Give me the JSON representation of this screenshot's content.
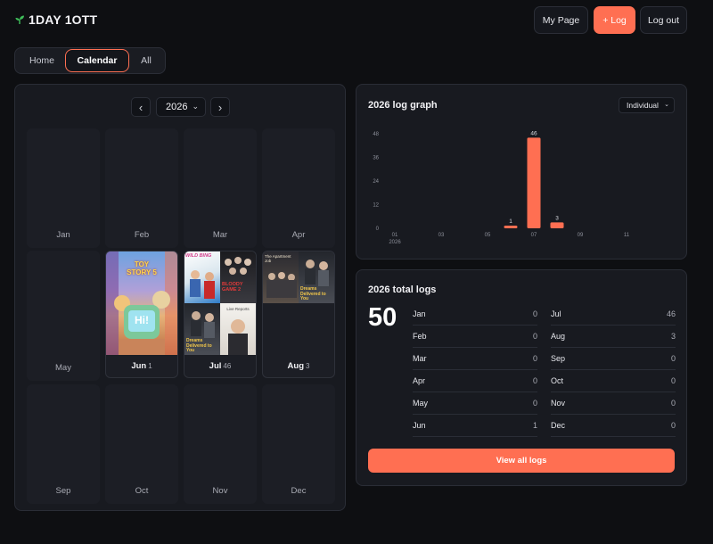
{
  "header": {
    "logo": "1DAY 1OTT",
    "my_page": "My Page",
    "log_button": "+ Log",
    "logout": "Log out"
  },
  "tabs": [
    "Home",
    "Calendar",
    "All"
  ],
  "calendar": {
    "year": "2026",
    "prev_label": "‹",
    "next_label": "›",
    "months": [
      {
        "label": "Jan",
        "count": ""
      },
      {
        "label": "Feb",
        "count": ""
      },
      {
        "label": "Mar",
        "count": ""
      },
      {
        "label": "Apr",
        "count": ""
      },
      {
        "label": "May",
        "count": ""
      },
      {
        "label": "Jun",
        "count": "1"
      },
      {
        "label": "Jul",
        "count": "46"
      },
      {
        "label": "Aug",
        "count": "3"
      },
      {
        "label": "Sep",
        "count": ""
      },
      {
        "label": "Oct",
        "count": ""
      },
      {
        "label": "Nov",
        "count": ""
      },
      {
        "label": "Dec",
        "count": ""
      }
    ],
    "poster_texts": {
      "jun_title": "TOY STORY 5",
      "jun_sign": "Hi!",
      "jul_1": "WILD BING",
      "jul_2": "BLOODY GAME 2",
      "jul_3": "Dreams Delivered to You",
      "jul_4": "Live Reports",
      "aug_1": "The Apartment Job",
      "aug_2": "Dreams Delivered to You"
    }
  },
  "graph": {
    "title": "2026 log graph",
    "mode": "Individual",
    "year_sub": "2026"
  },
  "chart_data": {
    "type": "bar",
    "categories": [
      "01",
      "02",
      "03",
      "04",
      "05",
      "06",
      "07",
      "08",
      "09",
      "10",
      "11",
      "12"
    ],
    "x_tick_labels": [
      "01",
      "03",
      "05",
      "07",
      "09",
      "11"
    ],
    "values": [
      0,
      0,
      0,
      0,
      0,
      1,
      46,
      3,
      0,
      0,
      0,
      0
    ],
    "value_labels": [
      "",
      "",
      "",
      "",
      "",
      "1",
      "46",
      "3",
      "",
      "",
      "",
      ""
    ],
    "y_ticks": [
      0,
      12,
      24,
      36,
      48
    ],
    "ylim": [
      0,
      48
    ],
    "title": "2026 log graph",
    "colors": {
      "bar": "#ff6f52"
    }
  },
  "totals": {
    "title": "2026 total logs",
    "total": "50",
    "left": [
      {
        "month": "Jan",
        "value": "0"
      },
      {
        "month": "Feb",
        "value": "0"
      },
      {
        "month": "Mar",
        "value": "0"
      },
      {
        "month": "Apr",
        "value": "0"
      },
      {
        "month": "May",
        "value": "0"
      },
      {
        "month": "Jun",
        "value": "1"
      }
    ],
    "right": [
      {
        "month": "Jul",
        "value": "46"
      },
      {
        "month": "Aug",
        "value": "3"
      },
      {
        "month": "Sep",
        "value": "0"
      },
      {
        "month": "Oct",
        "value": "0"
      },
      {
        "month": "Nov",
        "value": "0"
      },
      {
        "month": "Dec",
        "value": "0"
      }
    ],
    "view_all": "View all logs"
  },
  "colors": {
    "accent": "#ff6f52",
    "bg": "#0e0f12",
    "panel": "#181a20"
  }
}
